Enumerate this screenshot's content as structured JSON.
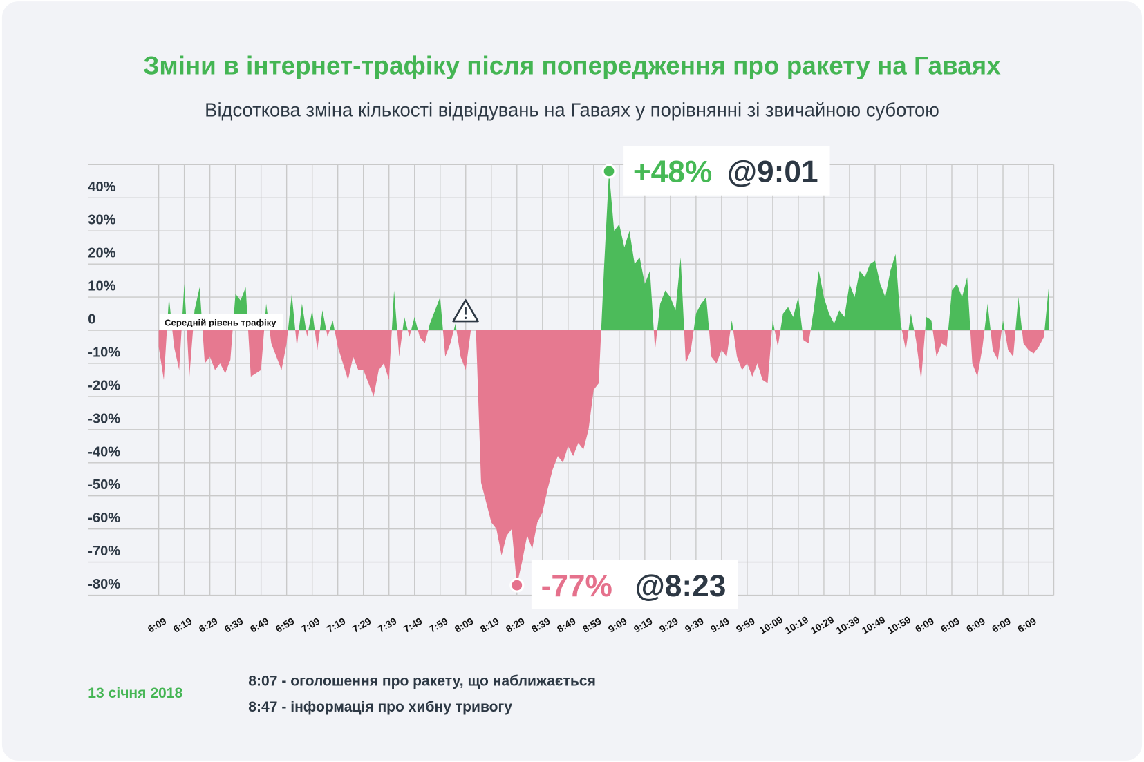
{
  "chart_data": {
    "type": "area",
    "title": "Зміни в інтернет-трафіку після попередження про ракету на Гаваях",
    "subtitle": "Відсоткова зміна кількості відвідувань на Гаваях у порівнянні зі звичайною суботою",
    "categories": [
      "6:09",
      null,
      null,
      null,
      null,
      "6:19",
      null,
      null,
      null,
      null,
      "6:29",
      null,
      null,
      null,
      null,
      "6:39",
      null,
      null,
      null,
      null,
      "6:49",
      null,
      null,
      null,
      null,
      "6:59",
      null,
      null,
      null,
      null,
      "7:09",
      null,
      null,
      null,
      null,
      "7:19",
      null,
      null,
      null,
      null,
      "7:29",
      null,
      null,
      null,
      null,
      "7:39",
      null,
      null,
      null,
      null,
      "7:49",
      null,
      null,
      null,
      null,
      "7:59",
      null,
      null,
      null,
      null,
      "8:09",
      null,
      null,
      null,
      null,
      "8:19",
      null,
      null,
      null,
      null,
      "8:29",
      null,
      null,
      null,
      null,
      "8:39",
      null,
      null,
      null,
      null,
      "8:49",
      null,
      null,
      null,
      null,
      "8:59",
      null,
      null,
      null,
      null,
      "9:09",
      null,
      null,
      null,
      null,
      "9:19",
      null,
      null,
      null,
      null,
      "9:29",
      null,
      null,
      null,
      null,
      "9:39",
      null,
      null,
      null,
      null,
      "9:49",
      null,
      null,
      null,
      null,
      "9:59",
      null,
      null,
      null,
      null,
      "10:09",
      null,
      null,
      null,
      null,
      "10:19",
      null,
      null,
      null,
      null,
      "10:29",
      null,
      null,
      null,
      null,
      "10:39",
      null,
      null,
      null,
      null,
      "10:49",
      null,
      null,
      null,
      null,
      "10:59",
      null,
      null,
      null,
      null,
      "6:09",
      null,
      null,
      null,
      null,
      "6:09",
      null,
      null,
      null,
      null,
      "6:09",
      null,
      null,
      null,
      null,
      "6:09",
      null,
      null,
      null,
      null,
      "6:09",
      null,
      null,
      null,
      null
    ],
    "values": [
      -5,
      -15,
      10,
      -5,
      -12,
      14,
      -14,
      6,
      13,
      -10,
      -8,
      -12,
      -10,
      -13,
      -9,
      11,
      9,
      13,
      -14,
      -13,
      -12,
      8,
      -4,
      -8,
      -12,
      -4,
      11,
      -5,
      8,
      -2,
      6,
      -6,
      6,
      -2,
      3,
      -5,
      -10,
      -15,
      -8,
      -12,
      -12,
      -16,
      -20,
      -12,
      -10,
      -15,
      12,
      -8,
      4,
      -2,
      4,
      -2,
      -4,
      2,
      6,
      10,
      -8,
      -4,
      2,
      -8,
      -12,
      0,
      0,
      -46,
      -52,
      -58,
      -60,
      -68,
      -62,
      -60,
      -77,
      -70,
      -62,
      -66,
      -58,
      -55,
      -48,
      -42,
      -38,
      -40,
      -35,
      -38,
      -34,
      -36,
      -30,
      -18,
      -16,
      18,
      48,
      30,
      32,
      25,
      30,
      20,
      22,
      14,
      18,
      -6,
      8,
      12,
      10,
      6,
      22,
      -10,
      -6,
      5,
      8,
      10,
      -8,
      -10,
      -6,
      -8,
      3,
      -8,
      -12,
      -10,
      -14,
      -10,
      -15,
      -16,
      3,
      -5,
      5,
      7,
      4,
      10,
      -3,
      -4,
      6,
      18,
      10,
      5,
      2,
      6,
      4,
      14,
      10,
      18,
      16,
      20,
      21,
      14,
      10,
      18,
      23,
      2,
      -6,
      5,
      -3,
      -15,
      4,
      3,
      -8,
      -4,
      -5,
      12,
      14,
      10,
      16,
      -10,
      -14,
      -5,
      8,
      -6,
      -9,
      3,
      -6,
      -8,
      10,
      -4,
      -6,
      -7,
      -5,
      -2,
      14
    ],
    "color": "#4cbb5a",
    "negative_color": "#e67990",
    "ylim": [
      -80,
      50
    ],
    "yticks": [
      {
        "value": -80,
        "label": "-80%"
      },
      {
        "value": -70,
        "label": "-70%"
      },
      {
        "value": -60,
        "label": "-60%"
      },
      {
        "value": -50,
        "label": "-50%"
      },
      {
        "value": -40,
        "label": "-40%"
      },
      {
        "value": -30,
        "label": "-30%"
      },
      {
        "value": -20,
        "label": "-20%"
      },
      {
        "value": -10,
        "label": "-10%"
      },
      0,
      {
        "value": 10,
        "label": "10%"
      },
      {
        "value": 20,
        "label": "20%"
      },
      {
        "value": 30,
        "label": "30%"
      },
      {
        "value": 40,
        "label": "40%"
      }
    ],
    "grid": true,
    "baseline_label": "Середній рівень трафіку",
    "annotations": [
      {
        "at": "max",
        "label": "+48%",
        "time": "@9:01",
        "color": "#46b955"
      },
      {
        "at": "min",
        "label": "-77%",
        "time": "@8:23",
        "color": "#e5718c"
      }
    ],
    "date": "13 січня 2018",
    "notes": [
      "8:07 - оголошення про ракету, що наближається",
      "8:47 - інформація про хибну тривогу"
    ]
  }
}
